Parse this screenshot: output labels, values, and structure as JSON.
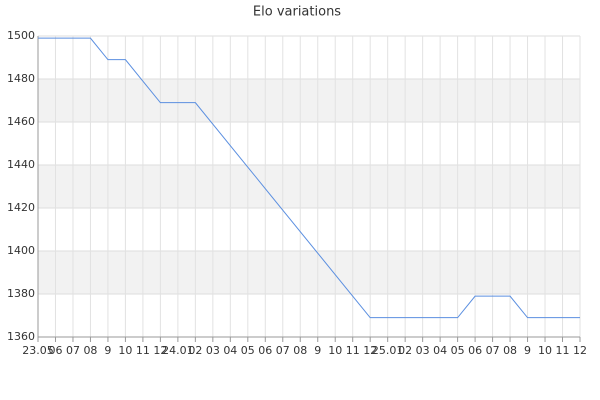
{
  "chart_data": {
    "type": "line",
    "title": "Elo variations",
    "categories": [
      "23.05",
      "06",
      "07",
      "08",
      "9",
      "10",
      "11",
      "12",
      "24.01",
      "02",
      "03",
      "04",
      "05",
      "06",
      "07",
      "08",
      "9",
      "10",
      "11",
      "12",
      "25.01",
      "02",
      "03",
      "04",
      "05",
      "06",
      "07",
      "08",
      "9",
      "10",
      "11",
      "12"
    ],
    "series": [
      {
        "name": "Elo",
        "color": "#5b8fe0",
        "values": [
          1499,
          1499,
          1499,
          1499,
          1489,
          1489,
          1479,
          1469,
          1469,
          1469,
          1459,
          1449,
          1439,
          1429,
          1419,
          1409,
          1399,
          1389,
          1379,
          1369,
          1369,
          1369,
          1369,
          1369,
          1369,
          1379,
          1379,
          1379,
          1369,
          1369,
          1369,
          1369
        ]
      }
    ],
    "ylim": [
      1360,
      1500
    ],
    "yticks": [
      1360,
      1380,
      1400,
      1420,
      1440,
      1460,
      1480,
      1500
    ],
    "grid": true
  }
}
